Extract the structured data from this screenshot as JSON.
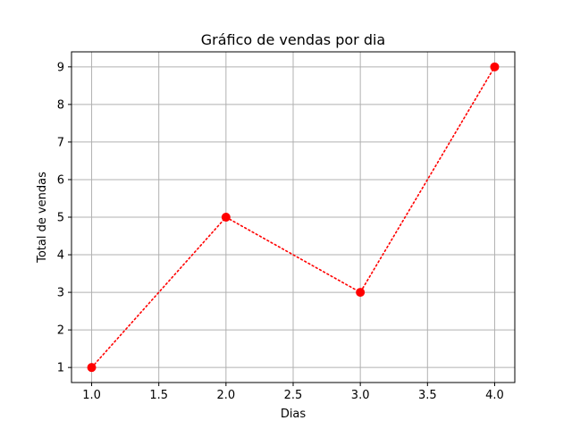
{
  "chart_data": {
    "type": "line",
    "title": "Gráfico de vendas por dia",
    "xlabel": "Dias",
    "ylabel": "Total de vendas",
    "x": [
      1.0,
      2.0,
      3.0,
      4.0
    ],
    "series": [
      {
        "values": [
          1,
          5,
          3,
          9
        ],
        "color": "#ff0000",
        "line_style": "dotted",
        "marker": "circle"
      }
    ],
    "xlim": [
      0.85,
      4.15
    ],
    "ylim": [
      0.6,
      9.4
    ],
    "xticks": [
      "1.0",
      "1.5",
      "2.0",
      "2.5",
      "3.0",
      "3.5",
      "4.0"
    ],
    "yticks": [
      "1",
      "2",
      "3",
      "4",
      "5",
      "6",
      "7",
      "8",
      "9"
    ],
    "grid": true,
    "grid_color": "#b0b0b0"
  }
}
